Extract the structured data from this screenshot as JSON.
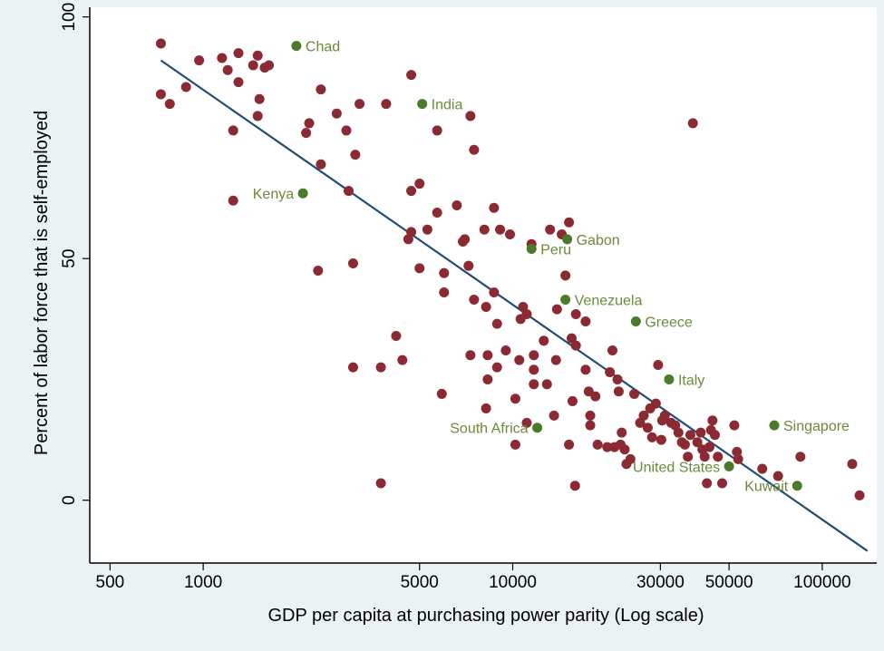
{
  "chart_data": {
    "type": "scatter",
    "xlabel": "GDP per capita at purchasing power parity (Log scale)",
    "ylabel": "Percent of labor force that is self-employed",
    "x_scale": "log",
    "xlim": [
      430,
      150000
    ],
    "ylim": [
      -13,
      102
    ],
    "x_ticks": [
      500,
      1000,
      5000,
      10000,
      30000,
      50000,
      100000
    ],
    "x_tick_labels": [
      "500",
      "1000",
      "5000",
      "10000",
      "30000",
      "50000",
      "100000"
    ],
    "y_ticks": [
      0,
      50,
      100
    ],
    "y_tick_labels": [
      "0",
      "50",
      "100"
    ],
    "grid": false,
    "colors": {
      "point": "#8b2a32",
      "highlight_point": "#4a7a2a",
      "highlight_label": "#6b8a3a",
      "fit_line": "#1f4e79",
      "plot_background": "#ffffff",
      "frame_background": "#eaf2f3"
    },
    "fit_line": {
      "x": [
        730,
        140000
      ],
      "y": [
        91,
        -10.5
      ]
    },
    "labeled_points": [
      {
        "label": "Chad",
        "x": 2000,
        "y": 94,
        "label_side": "right"
      },
      {
        "label": "India",
        "x": 5100,
        "y": 82,
        "label_side": "right"
      },
      {
        "label": "Kenya",
        "x": 2100,
        "y": 63.5,
        "label_side": "left"
      },
      {
        "label": "Peru",
        "x": 11500,
        "y": 52,
        "label_side": "right"
      },
      {
        "label": "Gabon",
        "x": 15000,
        "y": 54,
        "label_side": "right"
      },
      {
        "label": "Venezuela",
        "x": 14800,
        "y": 41.5,
        "label_side": "right"
      },
      {
        "label": "Greece",
        "x": 25000,
        "y": 37,
        "label_side": "right"
      },
      {
        "label": "Italy",
        "x": 32000,
        "y": 25,
        "label_side": "right"
      },
      {
        "label": "South Africa",
        "x": 12000,
        "y": 15,
        "label_side": "left"
      },
      {
        "label": "Singapore",
        "x": 70000,
        "y": 15.5,
        "label_side": "right"
      },
      {
        "label": "United States",
        "x": 50000,
        "y": 7,
        "label_side": "left"
      },
      {
        "label": "Kuwait",
        "x": 83000,
        "y": 3,
        "label_side": "left"
      }
    ],
    "points": [
      {
        "x": 730,
        "y": 94.5
      },
      {
        "x": 730,
        "y": 84
      },
      {
        "x": 780,
        "y": 82
      },
      {
        "x": 880,
        "y": 85.5
      },
      {
        "x": 970,
        "y": 91
      },
      {
        "x": 1150,
        "y": 91.5
      },
      {
        "x": 1200,
        "y": 89
      },
      {
        "x": 1300,
        "y": 92.5
      },
      {
        "x": 1300,
        "y": 86.5
      },
      {
        "x": 1450,
        "y": 90
      },
      {
        "x": 1500,
        "y": 92
      },
      {
        "x": 1580,
        "y": 89.5
      },
      {
        "x": 1630,
        "y": 90
      },
      {
        "x": 1520,
        "y": 83
      },
      {
        "x": 1500,
        "y": 79.5
      },
      {
        "x": 1250,
        "y": 76.5
      },
      {
        "x": 1250,
        "y": 62
      },
      {
        "x": 2200,
        "y": 78
      },
      {
        "x": 2150,
        "y": 76
      },
      {
        "x": 2400,
        "y": 85
      },
      {
        "x": 2700,
        "y": 80
      },
      {
        "x": 2900,
        "y": 76.5
      },
      {
        "x": 3100,
        "y": 71.5
      },
      {
        "x": 3200,
        "y": 82
      },
      {
        "x": 3900,
        "y": 82
      },
      {
        "x": 2400,
        "y": 69.5
      },
      {
        "x": 2950,
        "y": 64
      },
      {
        "x": 2350,
        "y": 47.5
      },
      {
        "x": 3050,
        "y": 49
      },
      {
        "x": 3050,
        "y": 27.5
      },
      {
        "x": 3750,
        "y": 27.5
      },
      {
        "x": 3750,
        "y": 3.5
      },
      {
        "x": 4200,
        "y": 34
      },
      {
        "x": 4400,
        "y": 29
      },
      {
        "x": 4600,
        "y": 54
      },
      {
        "x": 4700,
        "y": 55.5
      },
      {
        "x": 4700,
        "y": 64
      },
      {
        "x": 4700,
        "y": 88
      },
      {
        "x": 5000,
        "y": 65.5
      },
      {
        "x": 5000,
        "y": 48
      },
      {
        "x": 5300,
        "y": 56
      },
      {
        "x": 5700,
        "y": 59.5
      },
      {
        "x": 5700,
        "y": 76.5
      },
      {
        "x": 6000,
        "y": 47
      },
      {
        "x": 6000,
        "y": 43
      },
      {
        "x": 5900,
        "y": 22
      },
      {
        "x": 6600,
        "y": 61
      },
      {
        "x": 6900,
        "y": 53.5
      },
      {
        "x": 7000,
        "y": 54
      },
      {
        "x": 7200,
        "y": 48.5
      },
      {
        "x": 7300,
        "y": 79.5
      },
      {
        "x": 7500,
        "y": 72.5
      },
      {
        "x": 7500,
        "y": 41.5
      },
      {
        "x": 7300,
        "y": 30
      },
      {
        "x": 8100,
        "y": 56
      },
      {
        "x": 8200,
        "y": 40
      },
      {
        "x": 8700,
        "y": 60.5
      },
      {
        "x": 8700,
        "y": 43
      },
      {
        "x": 8900,
        "y": 36.5
      },
      {
        "x": 9100,
        "y": 56
      },
      {
        "x": 9800,
        "y": 55
      },
      {
        "x": 8900,
        "y": 27.5
      },
      {
        "x": 8300,
        "y": 30
      },
      {
        "x": 8300,
        "y": 25
      },
      {
        "x": 8200,
        "y": 19
      },
      {
        "x": 9500,
        "y": 31
      },
      {
        "x": 10200,
        "y": 21
      },
      {
        "x": 10200,
        "y": 11.5
      },
      {
        "x": 10500,
        "y": 29
      },
      {
        "x": 10600,
        "y": 37.5
      },
      {
        "x": 10800,
        "y": 40
      },
      {
        "x": 11100,
        "y": 38.5
      },
      {
        "x": 11100,
        "y": 16
      },
      {
        "x": 11500,
        "y": 53
      },
      {
        "x": 11700,
        "y": 30
      },
      {
        "x": 11700,
        "y": 27
      },
      {
        "x": 11700,
        "y": 24
      },
      {
        "x": 12600,
        "y": 33
      },
      {
        "x": 12900,
        "y": 24
      },
      {
        "x": 13200,
        "y": 56
      },
      {
        "x": 13600,
        "y": 17.5
      },
      {
        "x": 13800,
        "y": 29
      },
      {
        "x": 13900,
        "y": 39.5
      },
      {
        "x": 14400,
        "y": 55
      },
      {
        "x": 14800,
        "y": 46.5
      },
      {
        "x": 15200,
        "y": 57.5
      },
      {
        "x": 15200,
        "y": 11.5
      },
      {
        "x": 15500,
        "y": 33.5
      },
      {
        "x": 15600,
        "y": 20.5
      },
      {
        "x": 16000,
        "y": 38.5
      },
      {
        "x": 16000,
        "y": 32
      },
      {
        "x": 15900,
        "y": 3
      },
      {
        "x": 17200,
        "y": 37
      },
      {
        "x": 17200,
        "y": 27
      },
      {
        "x": 17600,
        "y": 22.5
      },
      {
        "x": 17800,
        "y": 17.5
      },
      {
        "x": 17800,
        "y": 15.5
      },
      {
        "x": 18500,
        "y": 21.5
      },
      {
        "x": 18800,
        "y": 11.5
      },
      {
        "x": 20200,
        "y": 11
      },
      {
        "x": 20600,
        "y": 26.5
      },
      {
        "x": 21000,
        "y": 31
      },
      {
        "x": 21300,
        "y": 11
      },
      {
        "x": 21800,
        "y": 25
      },
      {
        "x": 22000,
        "y": 22.5
      },
      {
        "x": 22300,
        "y": 11.5
      },
      {
        "x": 22500,
        "y": 14
      },
      {
        "x": 23000,
        "y": 10.5
      },
      {
        "x": 23300,
        "y": 7.5
      },
      {
        "x": 24000,
        "y": 8.5
      },
      {
        "x": 24700,
        "y": 22
      },
      {
        "x": 25800,
        "y": 16
      },
      {
        "x": 26500,
        "y": 17.5
      },
      {
        "x": 27300,
        "y": 15
      },
      {
        "x": 27800,
        "y": 19
      },
      {
        "x": 28200,
        "y": 13
      },
      {
        "x": 29000,
        "y": 20
      },
      {
        "x": 29500,
        "y": 28
      },
      {
        "x": 30200,
        "y": 12.5
      },
      {
        "x": 30400,
        "y": 16.5
      },
      {
        "x": 31000,
        "y": 17.5
      },
      {
        "x": 32500,
        "y": 16
      },
      {
        "x": 33500,
        "y": 15.5
      },
      {
        "x": 34300,
        "y": 14
      },
      {
        "x": 35200,
        "y": 12
      },
      {
        "x": 36000,
        "y": 11.5
      },
      {
        "x": 36800,
        "y": 9
      },
      {
        "x": 37500,
        "y": 13.5
      },
      {
        "x": 38200,
        "y": 78
      },
      {
        "x": 39500,
        "y": 12
      },
      {
        "x": 40500,
        "y": 14
      },
      {
        "x": 41000,
        "y": 10.5
      },
      {
        "x": 41700,
        "y": 9
      },
      {
        "x": 42400,
        "y": 3.5
      },
      {
        "x": 43200,
        "y": 11
      },
      {
        "x": 43700,
        "y": 14.5
      },
      {
        "x": 44200,
        "y": 16.5
      },
      {
        "x": 45000,
        "y": 13.5
      },
      {
        "x": 46000,
        "y": 9
      },
      {
        "x": 47500,
        "y": 3.5
      },
      {
        "x": 52000,
        "y": 15.5
      },
      {
        "x": 53000,
        "y": 10
      },
      {
        "x": 53500,
        "y": 8.5
      },
      {
        "x": 64000,
        "y": 6.5
      },
      {
        "x": 72000,
        "y": 5
      },
      {
        "x": 85000,
        "y": 9
      },
      {
        "x": 125000,
        "y": 7.5
      },
      {
        "x": 132000,
        "y": 1
      }
    ]
  }
}
